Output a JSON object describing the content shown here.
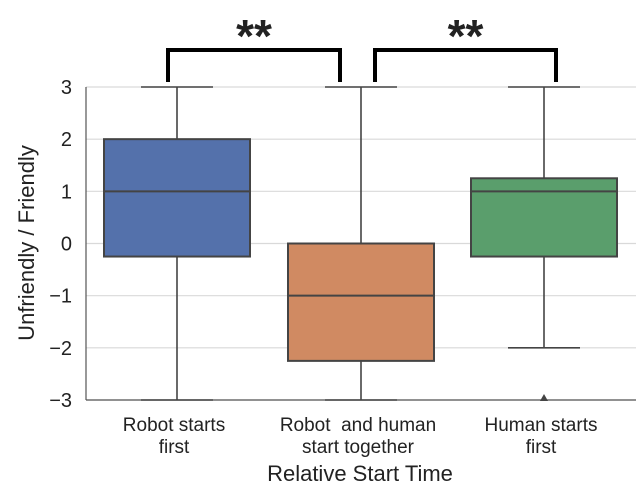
{
  "chart_data": {
    "type": "box",
    "xlabel": "Relative Start Time",
    "ylabel": "Unfriendly / Friendly",
    "ylim": [
      -3,
      3
    ],
    "yticks": [
      3,
      2,
      1,
      0,
      -1,
      -2,
      -3
    ],
    "ytick_labels": [
      "3",
      "2",
      "1",
      "0",
      "−1",
      "−2",
      "−3"
    ],
    "grid": "horizontal",
    "categories": [
      {
        "lines": [
          "Robot starts",
          "first"
        ],
        "color": "#5471ab",
        "whisker_low": -3,
        "q1": -0.25,
        "median": 1,
        "q3": 2,
        "whisker_high": 3,
        "outliers": []
      },
      {
        "lines": [
          "Robot  and human",
          "start together"
        ],
        "color": "#d08a62",
        "whisker_low": -3,
        "q1": -2.25,
        "median": -1,
        "q3": 0,
        "whisker_high": 3,
        "outliers": []
      },
      {
        "lines": [
          "Human starts",
          "first"
        ],
        "color": "#5a9e6c",
        "whisker_low": -2,
        "q1": -0.25,
        "median": 1,
        "q3": 1.25,
        "whisker_high": 3,
        "outliers": [
          -3
        ]
      }
    ],
    "significance": [
      {
        "from": 0,
        "to": 1,
        "label": "**"
      },
      {
        "from": 1,
        "to": 2,
        "label": "**"
      }
    ]
  }
}
